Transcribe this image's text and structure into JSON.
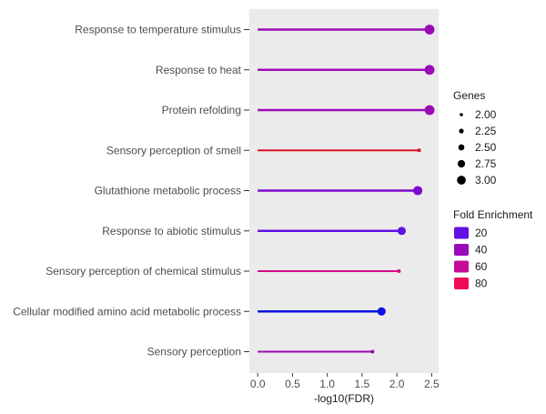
{
  "chart_data": {
    "type": "lollipop",
    "xlabel": "-log10(FDR)",
    "ylabel": "",
    "xlim": [
      -0.12,
      2.6
    ],
    "xticks": [
      0.0,
      0.5,
      1.0,
      1.5,
      2.0,
      2.5
    ],
    "xtick_labels": [
      "0.0",
      "0.5",
      "1.0",
      "1.5",
      "2.0",
      "2.5"
    ],
    "grid": false,
    "legend_position": "right",
    "categories": [
      "Response to temperature stimulus",
      "Response to heat",
      "Protein refolding",
      "Sensory perception of smell",
      "Glutathione metabolic process",
      "Response to abiotic stimulus",
      "Sensory perception of chemical stimulus",
      "Cellular modified amino acid metabolic process",
      "Sensory perception"
    ],
    "values": [
      2.47,
      2.47,
      2.47,
      2.32,
      2.3,
      2.07,
      2.03,
      1.78,
      1.65
    ],
    "genes": [
      3.0,
      3.0,
      3.0,
      2.0,
      2.9,
      2.75,
      2.0,
      2.75,
      2.0
    ],
    "fold_enrichment": [
      36,
      36,
      36,
      86,
      29,
      22,
      63,
      14,
      42
    ],
    "colors": [
      "#9a0ab6",
      "#9a0ab6",
      "#9a0ab6",
      "#e00e20",
      "#7e0ad0",
      "#6210e4",
      "#d20a86",
      "#0c10e6",
      "#9a0ab6"
    ],
    "size_legend": {
      "title": "Genes",
      "labels": [
        "2.00",
        "2.25",
        "2.50",
        "2.75",
        "3.00"
      ],
      "values": [
        2.0,
        2.25,
        2.5,
        2.75,
        3.0
      ]
    },
    "color_legend": {
      "title": "Fold Enrichment",
      "labels": [
        "20",
        "40",
        "60",
        "80"
      ],
      "colors": [
        "#6210e4",
        "#9a0ab6",
        "#c40a98",
        "#ee0a56"
      ]
    }
  }
}
